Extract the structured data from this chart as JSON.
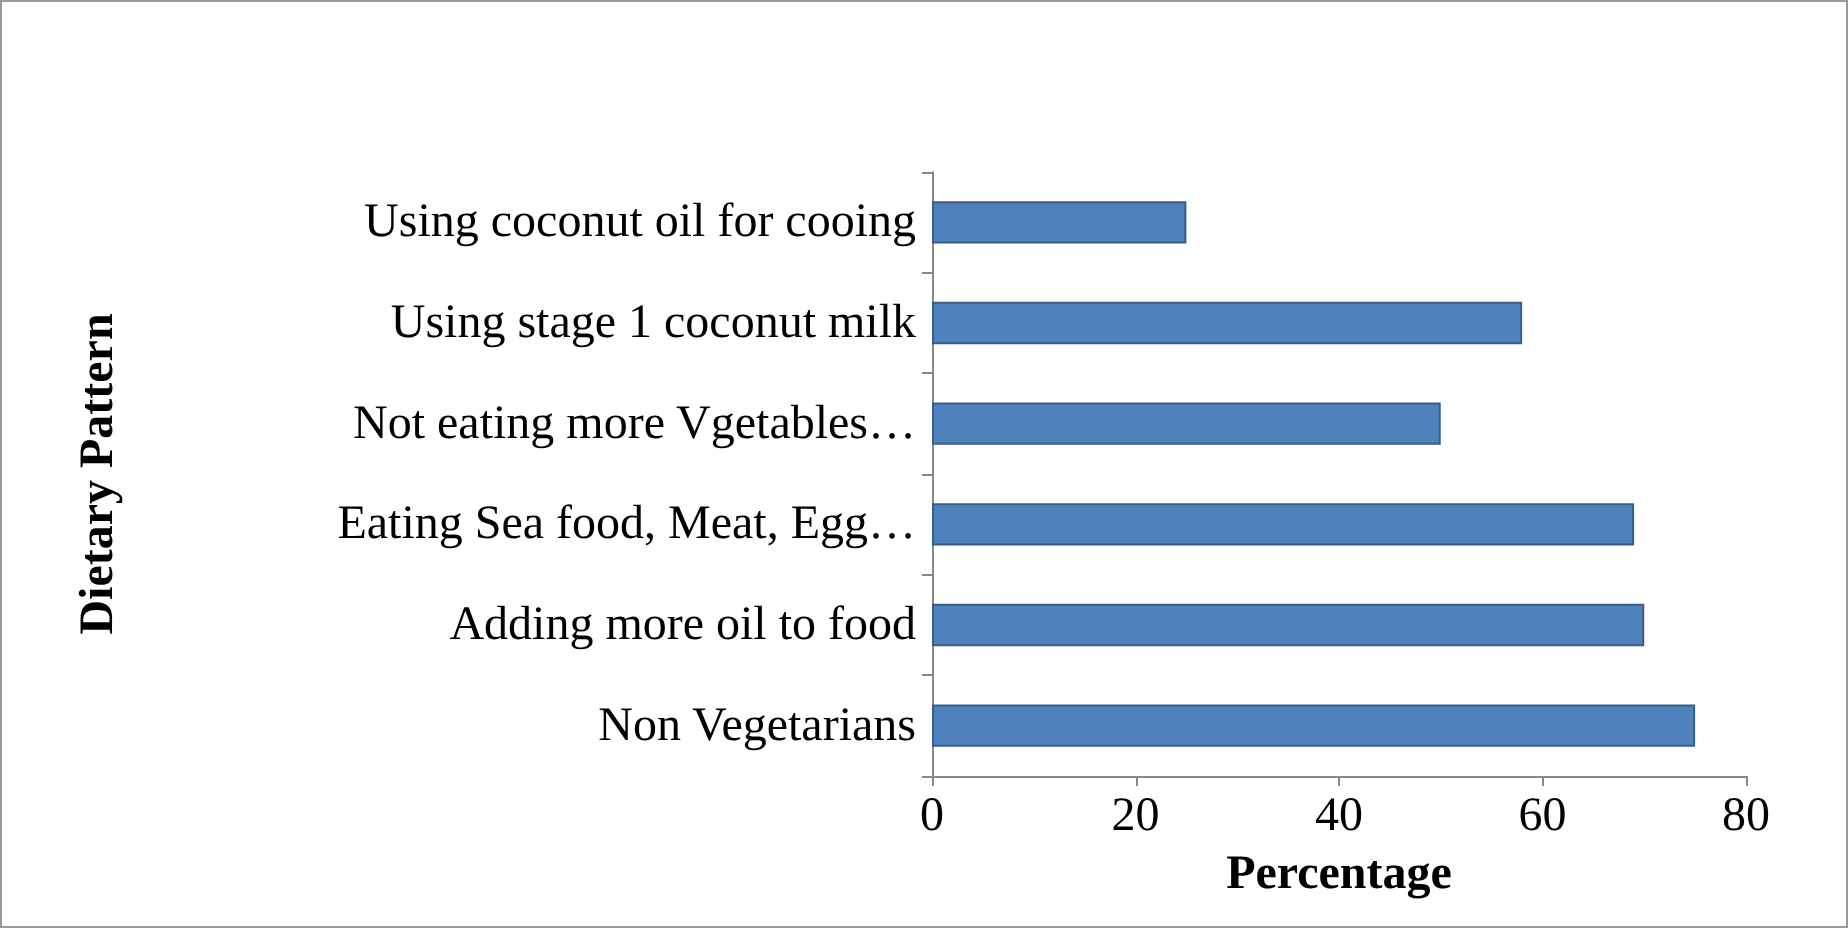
{
  "chart_data": {
    "type": "bar",
    "orientation": "horizontal",
    "xlabel": "Percentage",
    "ylabel": "Dietary Pattern",
    "categories": [
      "Using coconut oil for cooing",
      "Using stage 1 coconut milk",
      "Not eating more Vgetables…",
      "Eating Sea food, Meat, Egg…",
      "Adding more oil to food",
      "Non Vegetarians"
    ],
    "values": [
      25,
      58,
      50,
      69,
      70,
      75
    ],
    "color": "#4f81bd",
    "xlim": [
      0,
      80
    ],
    "xticks": [
      0,
      20,
      40,
      60,
      80
    ],
    "grid": false
  }
}
